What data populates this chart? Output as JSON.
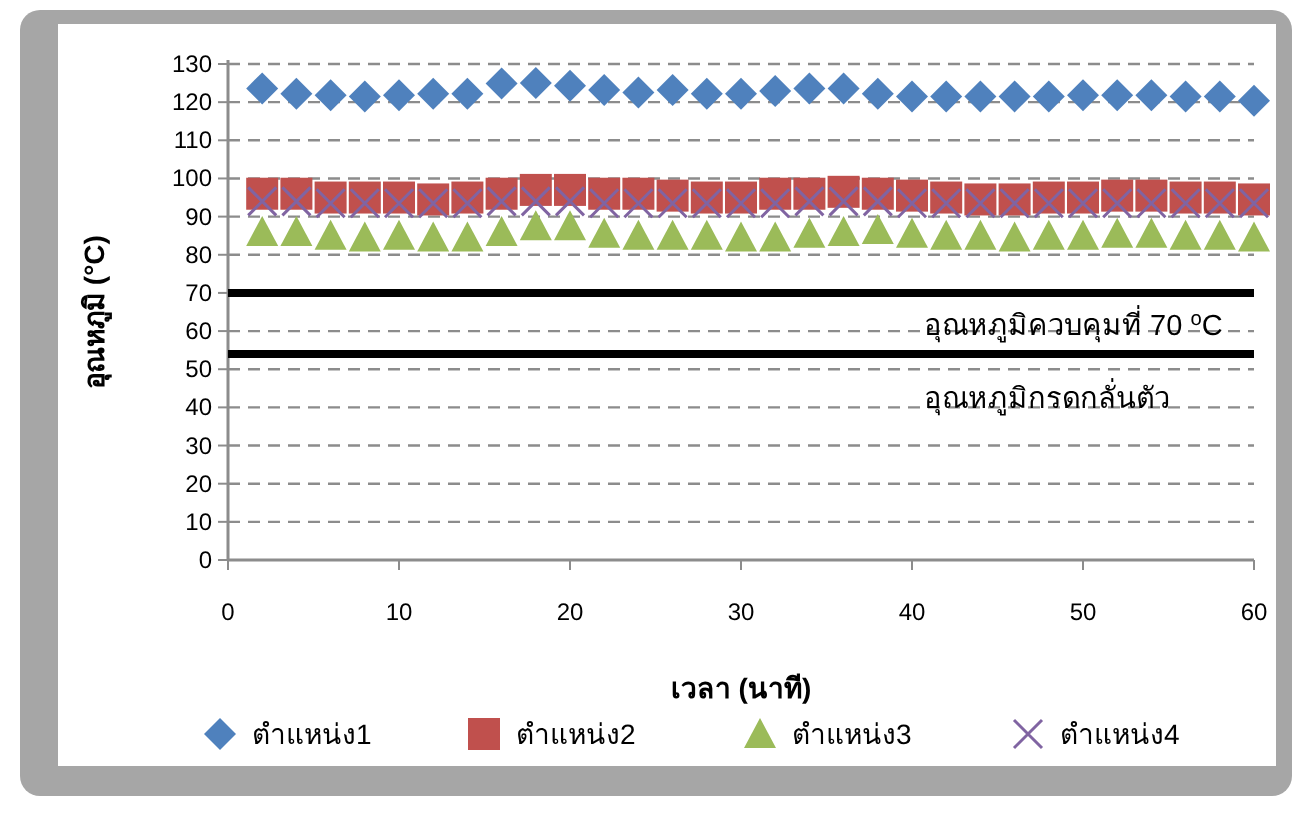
{
  "chart_data": {
    "type": "scatter",
    "xlabel": "เวลา (นาที)",
    "ylabel": "อุณหภูมิ (°C)",
    "x": [
      2,
      4,
      6,
      8,
      10,
      12,
      14,
      16,
      18,
      20,
      22,
      24,
      26,
      28,
      30,
      32,
      34,
      36,
      38,
      40,
      42,
      44,
      46,
      48,
      50,
      52,
      54,
      56,
      58,
      60
    ],
    "series": [
      {
        "name": "ตำแหน่ง1",
        "color": "#4f81bd",
        "marker": "diamond",
        "values": [
          123.6,
          122.2,
          121.8,
          121.5,
          121.8,
          122.2,
          122.2,
          124.9,
          125,
          124.3,
          123.2,
          122.5,
          123.2,
          122.2,
          122.2,
          122.9,
          123.6,
          123.6,
          122.2,
          121.5,
          121.5,
          121.5,
          121.5,
          121.5,
          121.8,
          121.8,
          121.8,
          121.5,
          121.5,
          120.4
        ]
      },
      {
        "name": "ตำแหน่ง2",
        "color": "#c0504d",
        "marker": "square",
        "values": [
          96,
          96,
          95,
          95,
          95,
          94.5,
          95,
          96,
          97,
          97,
          96,
          96,
          95.5,
          95,
          95,
          96,
          96,
          96.5,
          96,
          95.5,
          95,
          94.5,
          94.5,
          95,
          95,
          95.5,
          95.5,
          95,
          95,
          94.5
        ]
      },
      {
        "name": "ตำแหน่ง3",
        "color": "#9bbb59",
        "marker": "triangle",
        "values": [
          86,
          86,
          85,
          84.5,
          85,
          84.5,
          84.5,
          86,
          87.5,
          87.5,
          85.5,
          85,
          85,
          85,
          84.5,
          84.5,
          85.5,
          86,
          86.5,
          85.5,
          85,
          85,
          84.5,
          85,
          85,
          85.5,
          85.5,
          85,
          85,
          84.5
        ]
      },
      {
        "name": "ตำแหน่ง4",
        "color": "#8064a2",
        "marker": "cross",
        "values": [
          94,
          94,
          93.5,
          93.5,
          93.5,
          93.5,
          93.5,
          94,
          94,
          94,
          93.5,
          93.5,
          93.5,
          93.5,
          93.5,
          93.5,
          94,
          94,
          94,
          93.5,
          93.5,
          93.5,
          93.5,
          93.5,
          93.5,
          93.5,
          93.5,
          93.5,
          93.5,
          93.5
        ]
      }
    ],
    "xlim": [
      0,
      60
    ],
    "xticks": [
      0,
      10,
      20,
      30,
      40,
      50,
      60
    ],
    "ylim": [
      0,
      130
    ],
    "yticks": [
      0,
      10,
      20,
      30,
      40,
      50,
      60,
      70,
      80,
      90,
      100,
      110,
      120,
      130
    ],
    "grid": "y",
    "legend": "bottom",
    "ref_lines": [
      {
        "axis": "y",
        "value": 70,
        "label": "อุณหภูมิควบคุมที่ 70 $^{o}$C",
        "color": "#000000"
      },
      {
        "axis": "y",
        "value": 54,
        "label": "อุณหภูมิกรดกลั่นตัว",
        "color": "#000000"
      }
    ]
  }
}
